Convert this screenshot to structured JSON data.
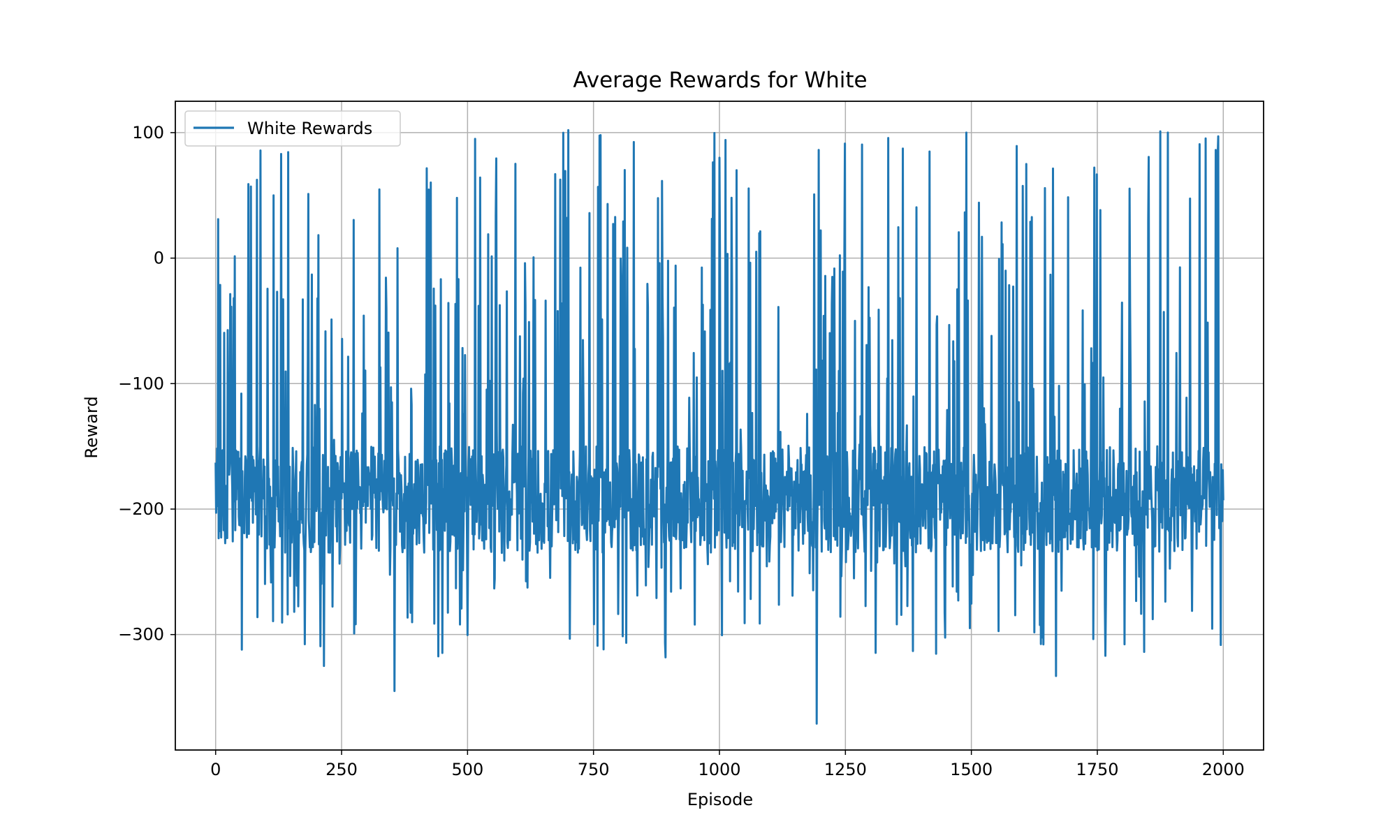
{
  "chart_data": {
    "type": "line",
    "title": "Average Rewards for White",
    "xlabel": "Episode",
    "ylabel": "Reward",
    "xlim": [
      -80,
      2080
    ],
    "ylim": [
      -392,
      125
    ],
    "xticks": [
      0,
      250,
      500,
      750,
      1000,
      1250,
      1500,
      1750,
      2000
    ],
    "yticks": [
      100,
      0,
      -100,
      -200,
      -300
    ],
    "xtick_labels": [
      "0",
      "250",
      "500",
      "750",
      "1000",
      "1250",
      "1500",
      "1750",
      "2000"
    ],
    "ytick_labels": [
      "100",
      "0",
      "−100",
      "−200",
      "−300"
    ],
    "grid": true,
    "legend_position": "top-left",
    "series": [
      {
        "name": "White Rewards",
        "color": "#1f77b4",
        "episodes": 2000,
        "values_shown": "dense line, roughly 2000 points; baseline about −195, frequent spikes up to ~100 and dips to ~−370",
        "notable_points": [
          {
            "x": 0,
            "y": -163
          },
          {
            "x": 5,
            "y": 31
          },
          {
            "x": 52,
            "y": -312
          },
          {
            "x": 65,
            "y": 59
          },
          {
            "x": 130,
            "y": 83
          },
          {
            "x": 215,
            "y": -325
          },
          {
            "x": 355,
            "y": -345
          },
          {
            "x": 515,
            "y": 95
          },
          {
            "x": 700,
            "y": 102
          },
          {
            "x": 1000,
            "y": 80
          },
          {
            "x": 1193,
            "y": -371
          },
          {
            "x": 1490,
            "y": 100
          },
          {
            "x": 1668,
            "y": -333
          },
          {
            "x": 1875,
            "y": 101
          },
          {
            "x": 1890,
            "y": 100
          },
          {
            "x": 1990,
            "y": 97
          },
          {
            "x": 2000,
            "y": -193
          }
        ]
      }
    ]
  }
}
